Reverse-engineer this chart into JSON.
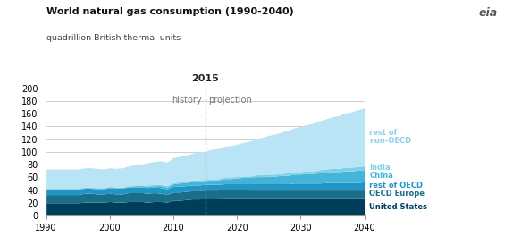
{
  "title": "World natural gas consumption (1990-2040)",
  "ylabel": "quadrillion British thermal units",
  "ylim": [
    0,
    200
  ],
  "yticks": [
    0,
    20,
    40,
    60,
    80,
    100,
    120,
    140,
    160,
    180,
    200
  ],
  "xlim": [
    1990,
    2040
  ],
  "xticks": [
    1990,
    2000,
    2010,
    2020,
    2030,
    2040
  ],
  "divider_year": 2015,
  "history_label": "history",
  "projection_label": "projection",
  "year_label": "2015",
  "background_color": "#ffffff",
  "plot_bg_color": "#ffffff",
  "grid_color": "#c8c8c8",
  "label_texts": [
    "United States",
    "OECD Europe",
    "rest of OECD",
    "China",
    "India",
    "rest of\nnon-OECD"
  ],
  "label_colors": [
    "#003f5c",
    "#1a6e8a",
    "#2196c4",
    "#45b4d8",
    "#7dd0e8",
    "#8ed0ea"
  ],
  "layer_colors": [
    "#003f5c",
    "#1a6e8a",
    "#2196c4",
    "#45b4d8",
    "#7dd0e8",
    "#b8e4f5"
  ],
  "years": [
    1990,
    1991,
    1992,
    1993,
    1994,
    1995,
    1996,
    1997,
    1998,
    1999,
    2000,
    2001,
    2002,
    2003,
    2004,
    2005,
    2006,
    2007,
    2008,
    2009,
    2010,
    2011,
    2012,
    2013,
    2014,
    2015,
    2016,
    2017,
    2018,
    2019,
    2020,
    2021,
    2022,
    2023,
    2024,
    2025,
    2026,
    2027,
    2028,
    2029,
    2030,
    2031,
    2032,
    2033,
    2034,
    2035,
    2036,
    2037,
    2038,
    2039,
    2040
  ],
  "United_States": [
    20,
    20,
    20,
    20,
    20,
    20,
    21,
    21,
    21,
    21,
    22,
    21,
    21,
    22,
    22,
    22,
    21,
    22,
    22,
    21,
    24,
    24,
    25,
    26,
    26,
    27,
    27,
    27,
    28,
    28,
    28,
    28,
    28,
    28,
    28,
    28,
    28,
    28,
    28,
    28,
    28,
    28,
    28,
    28,
    28,
    28,
    28,
    28,
    28,
    28,
    28
  ],
  "OECD_Europe": [
    13,
    13,
    13,
    13,
    13,
    13,
    14,
    14,
    13,
    13,
    13,
    13,
    13,
    14,
    14,
    14,
    14,
    14,
    13,
    12,
    13,
    13,
    13,
    13,
    13,
    13,
    13,
    13,
    13,
    13,
    13,
    13,
    12,
    12,
    12,
    12,
    12,
    12,
    12,
    12,
    12,
    12,
    12,
    12,
    12,
    12,
    12,
    12,
    12,
    12,
    12
  ],
  "rest_of_OECD": [
    8,
    8,
    8,
    8,
    8,
    8,
    8,
    8,
    8,
    8,
    9,
    9,
    9,
    9,
    9,
    9,
    9,
    9,
    9,
    9,
    9,
    9,
    9,
    9,
    9,
    9,
    9,
    9,
    9,
    9,
    9,
    9,
    10,
    10,
    10,
    10,
    10,
    10,
    10,
    11,
    11,
    11,
    11,
    11,
    12,
    12,
    12,
    12,
    12,
    12,
    13
  ],
  "China": [
    1,
    1,
    1,
    1,
    1,
    1,
    1,
    1,
    1,
    1,
    1,
    1,
    1,
    1,
    2,
    2,
    2,
    2,
    3,
    3,
    4,
    5,
    5,
    6,
    6,
    6,
    7,
    7,
    8,
    8,
    9,
    10,
    10,
    11,
    11,
    12,
    12,
    13,
    13,
    14,
    14,
    15,
    15,
    16,
    16,
    17,
    17,
    18,
    18,
    19,
    19
  ],
  "India": [
    1,
    1,
    1,
    1,
    1,
    1,
    1,
    1,
    1,
    1,
    1,
    1,
    1,
    1,
    1,
    1,
    2,
    2,
    2,
    2,
    2,
    2,
    2,
    2,
    2,
    2,
    2,
    2,
    2,
    2,
    2,
    2,
    2,
    3,
    3,
    3,
    3,
    3,
    4,
    4,
    4,
    4,
    4,
    5,
    5,
    5,
    5,
    6,
    6,
    6,
    6
  ],
  "rest_nonOECD": [
    30,
    30,
    30,
    30,
    30,
    30,
    30,
    30,
    30,
    29,
    29,
    29,
    30,
    31,
    32,
    33,
    35,
    36,
    37,
    37,
    39,
    40,
    41,
    42,
    44,
    44,
    46,
    47,
    49,
    50,
    51,
    53,
    55,
    57,
    59,
    61,
    63,
    65,
    67,
    69,
    71,
    73,
    75,
    77,
    79,
    81,
    83,
    85,
    87,
    89,
    91
  ]
}
